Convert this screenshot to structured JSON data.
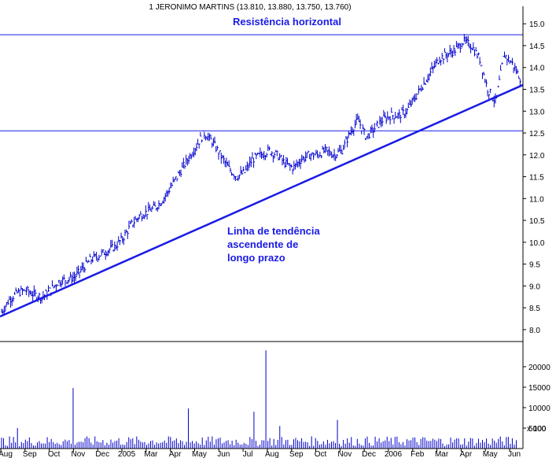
{
  "chart_data": {
    "type": "line",
    "title": "1 JERONIMO MARTINS (13.810, 13.880, 13.750, 13.760)",
    "price_axis": {
      "ylim": [
        7.8,
        15.4
      ],
      "ticks": [
        "8.0",
        "8.5",
        "9.0",
        "9.5",
        "10.0",
        "10.5",
        "11.0",
        "11.5",
        "12.0",
        "12.5",
        "13.0",
        "13.5",
        "14.0",
        "14.5",
        "15.0"
      ]
    },
    "volume_axis": {
      "ylim": [
        0,
        25000
      ],
      "ticks": [
        "5000",
        "10000",
        "15000",
        "20000"
      ],
      "scale_label": "x 100"
    },
    "x_labels": [
      "Aug",
      "Sep",
      "Oct",
      "Nov",
      "Dec",
      "2005",
      "Mar",
      "Apr",
      "May",
      "Jun",
      "Jul",
      "Aug",
      "Sep",
      "Oct",
      "Nov",
      "Dec",
      "2006",
      "Feb",
      "Mar",
      "Apr",
      "May",
      "Jun"
    ],
    "series": [
      {
        "values": [
          8.4,
          8.7,
          8.85,
          8.9,
          8.8,
          8.75,
          8.9,
          9.1,
          9.15,
          9.2,
          9.4,
          9.6,
          9.7,
          9.8,
          9.9,
          10.1,
          10.4,
          10.6,
          10.7,
          10.8,
          11.0,
          11.3,
          11.6,
          11.9,
          12.2,
          12.5,
          12.3,
          12.0,
          11.7,
          11.5,
          11.6,
          11.9,
          12.0,
          12.1,
          12.0,
          11.8,
          11.7,
          11.9,
          12.0,
          12.0,
          12.1,
          12.0,
          12.1,
          12.5,
          12.8,
          12.4,
          12.6,
          12.8,
          12.9,
          12.9,
          13.0,
          13.3,
          13.6,
          13.9,
          14.2,
          14.3,
          14.4,
          14.6,
          14.5,
          14.2,
          13.5,
          13.2,
          14.3,
          14.1,
          13.76
        ]
      }
    ],
    "annotations": {
      "resistance_label": "Resistência horizontal",
      "trend_label_lines": [
        "Linha de tendência",
        "ascendente de",
        "longo prazo"
      ],
      "resistance_levels": [
        14.75,
        12.55
      ],
      "trendline": {
        "start_value": 8.3,
        "end_value": 13.6
      }
    }
  }
}
